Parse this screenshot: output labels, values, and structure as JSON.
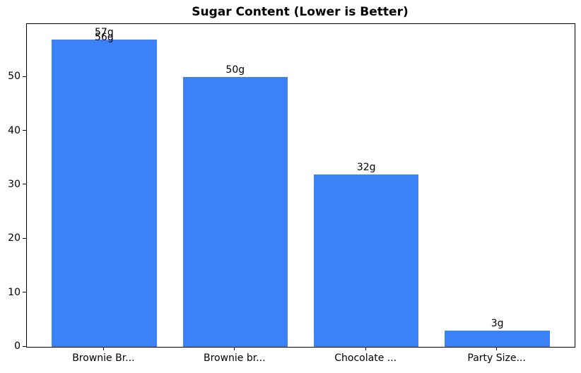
{
  "chart_data": {
    "type": "bar",
    "title": "Sugar Content (Lower is Better)",
    "xlabel": "",
    "ylabel": "",
    "categories": [
      "Brownie Br...",
      "Brownie br...",
      "Chocolate ...",
      "Party Size..."
    ],
    "bars": [
      {
        "category_index": 0,
        "value": 57,
        "label": "57g"
      },
      {
        "category_index": 0,
        "value": 56,
        "label": "56g"
      },
      {
        "category_index": 1,
        "value": 50,
        "label": "50g"
      },
      {
        "category_index": 2,
        "value": 32,
        "label": "32g"
      },
      {
        "category_index": 3,
        "value": 3,
        "label": "3g"
      }
    ],
    "yticks": [
      0,
      10,
      20,
      30,
      40,
      50
    ],
    "ylim": [
      0,
      59.85
    ],
    "xlim": [
      -0.59,
      3.59
    ],
    "bar_width_units": 0.8,
    "bar_color": "#3b82f6",
    "axis_color": "#000000",
    "text_color": "#000000",
    "background_color": "#ffffff",
    "grid": false,
    "legend": "none"
  }
}
